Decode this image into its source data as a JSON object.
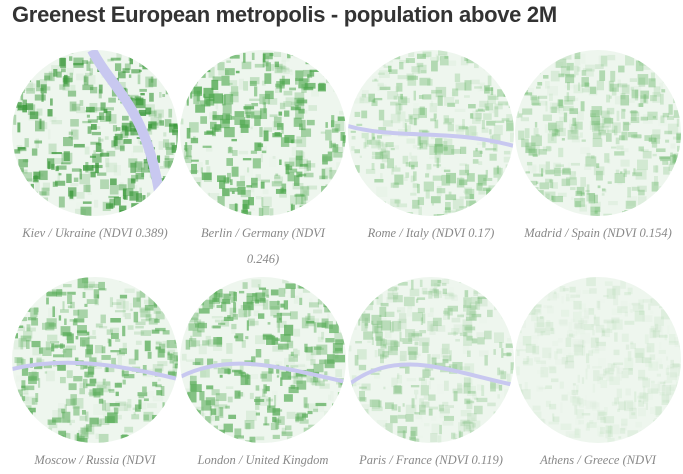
{
  "title": "Greenest European metropolis - population above 2M",
  "cities": [
    {
      "caption": "Kiev / Ukraine (NDVI 0.389)",
      "ndvi": 0.389,
      "color": "#3c9a3c",
      "river": true
    },
    {
      "caption": "Berlin / Germany (NDVI 0.246)",
      "ndvi": 0.246,
      "color": "#4fa84f",
      "river": false
    },
    {
      "caption": "Rome / Italy (NDVI 0.17)",
      "ndvi": 0.17,
      "color": "#6ab86a",
      "river": true
    },
    {
      "caption": "Madrid / Spain (NDVI 0.154)",
      "ndvi": 0.154,
      "color": "#72bb72",
      "river": false
    },
    {
      "caption": "Moscow / Russia (NDVI",
      "ndvi": null,
      "color": "#5cae5c",
      "river": true
    },
    {
      "caption": "London / United Kingdom",
      "ndvi": null,
      "color": "#5cae5c",
      "river": true
    },
    {
      "caption": "Paris / France (NDVI 0.119)",
      "ndvi": 0.119,
      "color": "#80c080",
      "river": true
    },
    {
      "caption": "Athens / Greece (NDVI",
      "ndvi": null,
      "color": "#a8d4a8",
      "river": false
    }
  ]
}
